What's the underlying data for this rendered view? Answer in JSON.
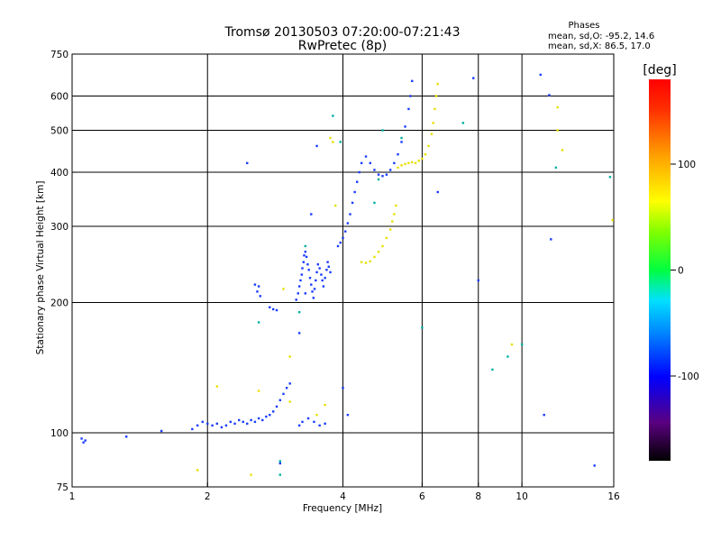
{
  "chart_data": {
    "type": "scatter",
    "title": "Tromsø 20130503 07:20:00-07:21:43",
    "subtitle": "RwPretec (8p)",
    "phase_box": {
      "heading": "Phases",
      "line1": "mean, sd,O: -95.2, 14.6",
      "line2": "mean, sd,X:  86.5, 17.0"
    },
    "xlabel": "Frequency [MHz]",
    "ylabel": "Stationary phase Virtual Height [km]",
    "xscale": "log",
    "yscale": "log",
    "xlim": [
      1,
      16
    ],
    "ylim": [
      75,
      750
    ],
    "x_ticks": [
      1,
      2,
      4,
      6,
      8,
      10,
      16
    ],
    "x_tick_labels": [
      "1",
      "2",
      "4",
      "6",
      "8",
      "10",
      "16"
    ],
    "x_grid": [
      2,
      4,
      6,
      8,
      10
    ],
    "y_ticks": [
      75,
      100,
      200,
      300,
      400,
      500,
      600,
      750
    ],
    "y_tick_labels": [
      "75",
      "100",
      "200",
      "300",
      "400",
      "500",
      "600",
      "750"
    ],
    "y_grid": [
      100,
      200,
      300,
      400,
      500,
      600
    ],
    "colorbar": {
      "label": "[deg]",
      "range": [
        -180,
        180
      ],
      "ticks": [
        100,
        0,
        -100
      ],
      "tick_labels": [
        "100",
        "0",
        "-100"
      ]
    },
    "series": [
      {
        "name": "O-mode trace (blue)",
        "color": "#1a3cff",
        "points": [
          [
            1.05,
            97
          ],
          [
            1.07,
            96
          ],
          [
            1.06,
            95
          ],
          [
            1.32,
            98
          ],
          [
            1.58,
            101
          ],
          [
            1.85,
            102
          ],
          [
            1.9,
            104
          ],
          [
            1.95,
            106
          ],
          [
            2.0,
            105
          ],
          [
            2.05,
            104
          ],
          [
            2.1,
            105
          ],
          [
            2.15,
            103
          ],
          [
            2.2,
            104
          ],
          [
            2.25,
            106
          ],
          [
            2.3,
            105
          ],
          [
            2.35,
            107
          ],
          [
            2.4,
            106
          ],
          [
            2.45,
            105
          ],
          [
            2.5,
            107
          ],
          [
            2.55,
            106
          ],
          [
            2.6,
            108
          ],
          [
            2.65,
            107
          ],
          [
            2.7,
            109
          ],
          [
            2.75,
            110
          ],
          [
            2.8,
            112
          ],
          [
            2.85,
            115
          ],
          [
            2.9,
            119
          ],
          [
            2.95,
            123
          ],
          [
            3.0,
            127
          ],
          [
            3.05,
            130
          ],
          [
            2.55,
            220
          ],
          [
            2.6,
            218
          ],
          [
            2.58,
            212
          ],
          [
            2.62,
            207
          ],
          [
            2.75,
            195
          ],
          [
            2.8,
            193
          ],
          [
            2.85,
            192
          ],
          [
            3.15,
            203
          ],
          [
            3.18,
            210
          ],
          [
            3.2,
            218
          ],
          [
            3.22,
            225
          ],
          [
            3.24,
            232
          ],
          [
            3.25,
            240
          ],
          [
            3.27,
            248
          ],
          [
            3.28,
            257
          ],
          [
            3.3,
            262
          ],
          [
            3.32,
            255
          ],
          [
            3.34,
            245
          ],
          [
            3.36,
            238
          ],
          [
            3.38,
            228
          ],
          [
            3.4,
            220
          ],
          [
            3.42,
            212
          ],
          [
            3.44,
            205
          ],
          [
            3.46,
            215
          ],
          [
            3.48,
            225
          ],
          [
            3.5,
            235
          ],
          [
            3.52,
            245
          ],
          [
            3.55,
            240
          ],
          [
            3.58,
            232
          ],
          [
            3.6,
            225
          ],
          [
            3.62,
            218
          ],
          [
            3.65,
            228
          ],
          [
            3.68,
            238
          ],
          [
            3.7,
            248
          ],
          [
            3.72,
            242
          ],
          [
            3.75,
            235
          ],
          [
            3.9,
            270
          ],
          [
            3.95,
            275
          ],
          [
            4.0,
            282
          ],
          [
            4.05,
            292
          ],
          [
            4.1,
            305
          ],
          [
            4.15,
            320
          ],
          [
            4.2,
            340
          ],
          [
            4.25,
            360
          ],
          [
            4.3,
            380
          ],
          [
            4.35,
            400
          ],
          [
            4.4,
            420
          ],
          [
            4.5,
            435
          ],
          [
            4.6,
            420
          ],
          [
            4.7,
            405
          ],
          [
            4.8,
            395
          ],
          [
            4.9,
            392
          ],
          [
            5.0,
            395
          ],
          [
            5.1,
            405
          ],
          [
            5.2,
            420
          ],
          [
            5.3,
            440
          ],
          [
            5.4,
            470
          ],
          [
            5.5,
            510
          ],
          [
            5.6,
            560
          ],
          [
            5.65,
            600
          ],
          [
            5.7,
            650
          ],
          [
            2.45,
            420
          ],
          [
            3.5,
            460
          ],
          [
            3.4,
            320
          ],
          [
            3.3,
            210
          ],
          [
            3.2,
            170
          ],
          [
            3.35,
            108
          ],
          [
            3.45,
            106
          ],
          [
            3.55,
            104
          ],
          [
            3.65,
            105
          ],
          [
            3.2,
            104
          ],
          [
            3.25,
            106
          ],
          [
            4.1,
            110
          ],
          [
            4.0,
            127
          ],
          [
            7.8,
            660
          ],
          [
            11.0,
            672
          ],
          [
            11.5,
            603
          ],
          [
            11.6,
            280
          ],
          [
            11.2,
            110
          ],
          [
            14.5,
            84
          ],
          [
            8.0,
            225
          ],
          [
            6.5,
            360
          ],
          [
            2.9,
            85
          ]
        ]
      },
      {
        "name": "X-mode trace (yellow)",
        "color": "#e8e000",
        "points": [
          [
            4.4,
            248
          ],
          [
            4.5,
            247
          ],
          [
            4.6,
            249
          ],
          [
            4.7,
            255
          ],
          [
            4.8,
            262
          ],
          [
            4.9,
            270
          ],
          [
            5.0,
            282
          ],
          [
            5.1,
            295
          ],
          [
            5.15,
            308
          ],
          [
            5.2,
            320
          ],
          [
            5.25,
            335
          ],
          [
            5.3,
            410
          ],
          [
            5.4,
            415
          ],
          [
            5.5,
            418
          ],
          [
            5.6,
            420
          ],
          [
            5.7,
            422
          ],
          [
            5.8,
            420
          ],
          [
            5.9,
            425
          ],
          [
            6.0,
            430
          ],
          [
            6.1,
            440
          ],
          [
            6.2,
            460
          ],
          [
            6.3,
            490
          ],
          [
            6.35,
            520
          ],
          [
            6.4,
            560
          ],
          [
            6.45,
            600
          ],
          [
            6.5,
            640
          ],
          [
            3.8,
            470
          ],
          [
            3.75,
            480
          ],
          [
            2.95,
            215
          ],
          [
            3.05,
            150
          ],
          [
            2.1,
            128
          ],
          [
            2.6,
            125
          ],
          [
            3.05,
            118
          ],
          [
            1.9,
            82
          ],
          [
            2.5,
            80
          ],
          [
            3.85,
            335
          ],
          [
            12.0,
            565
          ],
          [
            12.3,
            450
          ],
          [
            12.0,
            500
          ],
          [
            15.9,
            310
          ],
          [
            9.5,
            160
          ],
          [
            3.5,
            110
          ],
          [
            3.65,
            116
          ]
        ]
      },
      {
        "name": "Scattered other phases",
        "color": "#00b0a0",
        "points": [
          [
            2.9,
            80
          ],
          [
            2.9,
            86
          ],
          [
            4.7,
            340
          ],
          [
            9.3,
            150
          ],
          [
            10.0,
            160
          ],
          [
            11.9,
            410
          ],
          [
            15.7,
            390
          ],
          [
            3.2,
            190
          ],
          [
            6.0,
            175
          ],
          [
            8.6,
            140
          ],
          [
            3.8,
            540
          ],
          [
            3.95,
            470
          ],
          [
            4.8,
            385
          ],
          [
            7.4,
            520
          ],
          [
            2.6,
            180
          ],
          [
            3.3,
            270
          ],
          [
            5.4,
            480
          ],
          [
            4.9,
            500
          ]
        ]
      }
    ]
  }
}
